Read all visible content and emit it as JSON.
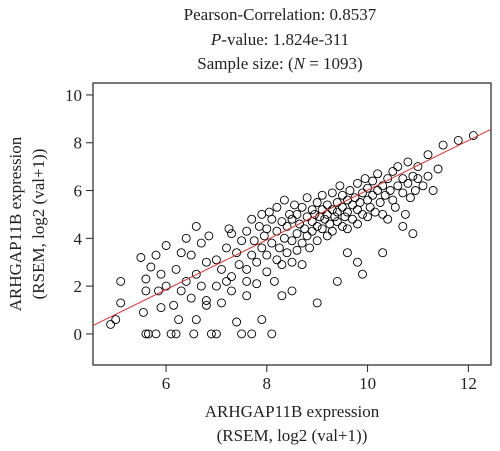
{
  "stats": {
    "correlation_text": "Pearson-Correlation: 0.8537",
    "pvalue_prefix": "P",
    "pvalue_suffix": "-value: 1.824e-311",
    "sample_prefix": "Sample size: (",
    "sample_var": "N",
    "sample_suffix": " = 1093)"
  },
  "chart_data": {
    "type": "scatter",
    "title": "",
    "xlabel_line1": "ARHGAP11B expression",
    "xlabel_line2": "(RSEM, log2 (val+1))",
    "ylabel_line1": "ARHGAP11B expression",
    "ylabel_line2": "(RSEM, log2 (val+1))",
    "xlim": [
      4.55,
      12.45
    ],
    "ylim": [
      -1.3,
      10.5
    ],
    "xticks": [
      6,
      8,
      10,
      12
    ],
    "yticks": [
      0,
      2,
      4,
      6,
      8,
      10
    ],
    "grid": false,
    "legend": "none",
    "marker": "open-circle",
    "point_color": "#000000",
    "fit_line": {
      "color": "#e03030",
      "x": [
        4.55,
        12.45
      ],
      "y": [
        0.35,
        8.56
      ]
    },
    "statistics": {
      "pearson_correlation": 0.8537,
      "p_value": "1.824e-311",
      "sample_size": 1093
    },
    "points": [
      [
        4.9,
        0.4
      ],
      [
        5.0,
        0.6
      ],
      [
        5.1,
        1.3
      ],
      [
        5.1,
        2.2
      ],
      [
        5.6,
        0.0
      ],
      [
        5.65,
        0.0
      ],
      [
        5.55,
        0.9
      ],
      [
        5.6,
        1.8
      ],
      [
        5.6,
        2.3
      ],
      [
        5.7,
        2.8
      ],
      [
        5.8,
        3.3
      ],
      [
        5.9,
        1.1
      ],
      [
        5.8,
        0.0
      ],
      [
        5.85,
        1.8
      ],
      [
        6.0,
        2.0
      ],
      [
        6.1,
        0.0
      ],
      [
        6.15,
        1.2
      ],
      [
        6.2,
        0.0
      ],
      [
        6.25,
        0.6
      ],
      [
        6.3,
        1.8
      ],
      [
        6.2,
        2.7
      ],
      [
        6.0,
        3.7
      ],
      [
        6.3,
        3.4
      ],
      [
        6.4,
        4.0
      ],
      [
        6.5,
        3.3
      ],
      [
        6.55,
        0.0
      ],
      [
        6.6,
        0.6
      ],
      [
        6.5,
        1.5
      ],
      [
        6.6,
        2.5
      ],
      [
        6.4,
        2.2
      ],
      [
        6.7,
        2.0
      ],
      [
        6.7,
        3.8
      ],
      [
        6.8,
        1.2
      ],
      [
        6.8,
        3.0
      ],
      [
        6.85,
        4.1
      ],
      [
        7.0,
        0.0
      ],
      [
        7.0,
        2.0
      ],
      [
        7.1,
        1.3
      ],
      [
        7.0,
        3.1
      ],
      [
        7.1,
        2.7
      ],
      [
        7.2,
        3.6
      ],
      [
        7.25,
        4.4
      ],
      [
        7.3,
        1.8
      ],
      [
        7.3,
        2.4
      ],
      [
        7.4,
        3.4
      ],
      [
        7.3,
        4.2
      ],
      [
        7.45,
        2.9
      ],
      [
        7.5,
        3.9
      ],
      [
        7.5,
        0.0
      ],
      [
        7.6,
        4.3
      ],
      [
        7.6,
        1.6
      ],
      [
        7.6,
        2.7
      ],
      [
        7.7,
        3.3
      ],
      [
        7.7,
        4.8
      ],
      [
        7.75,
        3.9
      ],
      [
        7.8,
        2.1
      ],
      [
        7.8,
        3.0
      ],
      [
        7.85,
        4.5
      ],
      [
        7.9,
        3.6
      ],
      [
        7.9,
        5.0
      ],
      [
        7.95,
        4.1
      ],
      [
        8.0,
        2.6
      ],
      [
        8.0,
        3.3
      ],
      [
        8.0,
        4.4
      ],
      [
        8.05,
        5.1
      ],
      [
        8.1,
        0.0
      ],
      [
        8.1,
        3.8
      ],
      [
        8.1,
        4.8
      ],
      [
        8.15,
        2.2
      ],
      [
        8.2,
        3.1
      ],
      [
        8.2,
        4.3
      ],
      [
        8.2,
        5.3
      ],
      [
        8.25,
        3.6
      ],
      [
        8.3,
        4.7
      ],
      [
        8.3,
        2.9
      ],
      [
        8.35,
        4.0
      ],
      [
        8.35,
        5.6
      ],
      [
        8.4,
        3.4
      ],
      [
        8.4,
        4.5
      ],
      [
        8.45,
        5.0
      ],
      [
        8.5,
        3.0
      ],
      [
        8.5,
        3.9
      ],
      [
        8.5,
        4.8
      ],
      [
        8.55,
        5.4
      ],
      [
        8.6,
        4.2
      ],
      [
        8.6,
        3.5
      ],
      [
        8.6,
        5.0
      ],
      [
        8.65,
        4.6
      ],
      [
        8.7,
        3.8
      ],
      [
        8.7,
        5.3
      ],
      [
        8.7,
        2.9
      ],
      [
        8.75,
        4.4
      ],
      [
        8.8,
        4.9
      ],
      [
        8.8,
        4.1
      ],
      [
        8.8,
        5.7
      ],
      [
        8.85,
        3.6
      ],
      [
        8.9,
        4.7
      ],
      [
        8.9,
        5.2
      ],
      [
        8.9,
        4.3
      ],
      [
        8.95,
        5.0
      ],
      [
        9.0,
        4.5
      ],
      [
        9.0,
        5.5
      ],
      [
        9.0,
        3.9
      ],
      [
        9.05,
        4.9
      ],
      [
        9.1,
        5.2
      ],
      [
        9.1,
        4.4
      ],
      [
        9.1,
        5.8
      ],
      [
        9.15,
        4.8
      ],
      [
        9.2,
        5.4
      ],
      [
        9.2,
        4.1
      ],
      [
        9.2,
        5.0
      ],
      [
        9.25,
        4.6
      ],
      [
        9.3,
        5.2
      ],
      [
        9.3,
        5.9
      ],
      [
        9.3,
        4.3
      ],
      [
        9.35,
        4.9
      ],
      [
        9.4,
        5.5
      ],
      [
        9.4,
        4.7
      ],
      [
        9.4,
        5.1
      ],
      [
        9.45,
        6.2
      ],
      [
        9.5,
        5.3
      ],
      [
        9.5,
        4.5
      ],
      [
        9.5,
        5.8
      ],
      [
        9.55,
        4.9
      ],
      [
        9.6,
        5.6
      ],
      [
        9.6,
        5.1
      ],
      [
        9.6,
        4.4
      ],
      [
        9.65,
        6.0
      ],
      [
        9.7,
        5.4
      ],
      [
        9.7,
        4.8
      ],
      [
        9.75,
        5.7
      ],
      [
        9.8,
        5.2
      ],
      [
        9.8,
        6.3
      ],
      [
        9.8,
        4.6
      ],
      [
        9.85,
        5.5
      ],
      [
        9.9,
        5.9
      ],
      [
        9.9,
        5.0
      ],
      [
        9.95,
        6.5
      ],
      [
        10.0,
        5.6
      ],
      [
        10.0,
        6.1
      ],
      [
        10.0,
        4.9
      ],
      [
        10.05,
        5.3
      ],
      [
        10.1,
        6.4
      ],
      [
        10.1,
        5.8
      ],
      [
        10.15,
        5.1
      ],
      [
        10.2,
        6.0
      ],
      [
        10.2,
        6.7
      ],
      [
        10.25,
        5.5
      ],
      [
        10.3,
        6.2
      ],
      [
        10.3,
        5.0
      ],
      [
        10.35,
        5.8
      ],
      [
        10.4,
        6.5
      ],
      [
        10.4,
        4.8
      ],
      [
        10.45,
        6.0
      ],
      [
        10.5,
        5.6
      ],
      [
        10.5,
        6.8
      ],
      [
        10.55,
        5.3
      ],
      [
        10.6,
        6.2
      ],
      [
        10.6,
        7.0
      ],
      [
        10.7,
        5.9
      ],
      [
        10.7,
        6.5
      ],
      [
        10.75,
        5.0
      ],
      [
        10.8,
        6.3
      ],
      [
        10.8,
        7.2
      ],
      [
        10.85,
        5.7
      ],
      [
        10.9,
        6.6
      ],
      [
        10.95,
        6.0
      ],
      [
        11.0,
        6.5
      ],
      [
        11.0,
        7.0
      ],
      [
        11.1,
        6.2
      ],
      [
        11.2,
        7.5
      ],
      [
        11.2,
        6.6
      ],
      [
        11.3,
        6.0
      ],
      [
        11.4,
        6.9
      ],
      [
        11.5,
        7.9
      ],
      [
        11.8,
        8.1
      ],
      [
        12.1,
        8.3
      ],
      [
        10.7,
        4.5
      ],
      [
        10.3,
        3.4
      ],
      [
        9.9,
        2.5
      ],
      [
        9.4,
        2.2
      ],
      [
        9.0,
        1.3
      ],
      [
        8.5,
        1.8
      ],
      [
        7.9,
        0.6
      ],
      [
        7.4,
        0.5
      ],
      [
        7.7,
        0.0
      ],
      [
        6.9,
        0.0
      ],
      [
        6.6,
        4.5
      ],
      [
        5.9,
        2.5
      ],
      [
        5.5,
        3.2
      ],
      [
        6.8,
        1.4
      ],
      [
        7.2,
        2.2
      ],
      [
        9.8,
        3.0
      ],
      [
        10.9,
        4.2
      ],
      [
        9.6,
        3.4
      ],
      [
        8.3,
        1.6
      ],
      [
        7.6,
        2.2
      ]
    ]
  }
}
